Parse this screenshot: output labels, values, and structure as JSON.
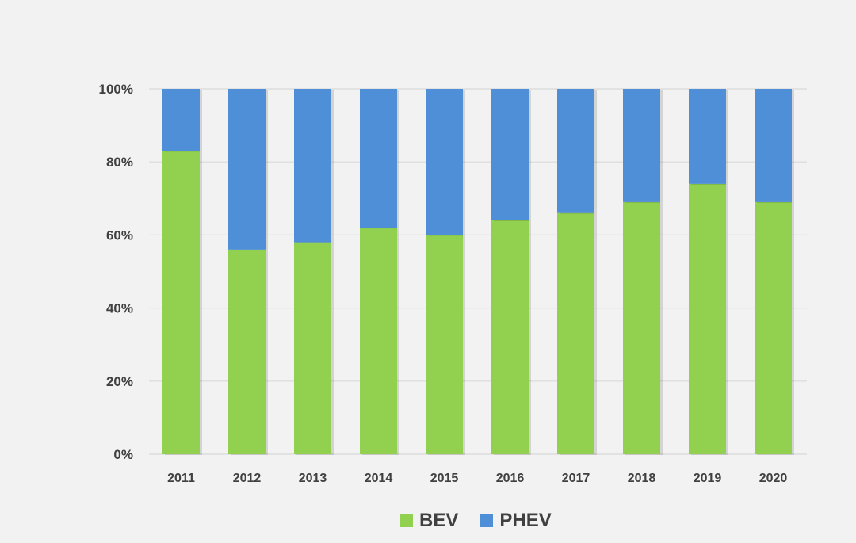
{
  "colors": {
    "bev": "#92d050",
    "phev": "#4f8fd8",
    "grid": "#d9d9d9",
    "axis_text": "#404040",
    "background": "#f2f2f2"
  },
  "legend": {
    "position": "bottom",
    "items": [
      {
        "label": "BEV",
        "color": "#92d050"
      },
      {
        "label": "PHEV",
        "color": "#4f8fd8"
      }
    ]
  },
  "chart_data": {
    "type": "bar",
    "stacked": true,
    "categories": [
      "2011",
      "2012",
      "2013",
      "2014",
      "2015",
      "2016",
      "2017",
      "2018",
      "2019",
      "2020"
    ],
    "series": [
      {
        "name": "BEV",
        "values": [
          83,
          56,
          58,
          62,
          60,
          64,
          66,
          69,
          74,
          69
        ]
      },
      {
        "name": "PHEV",
        "values": [
          17,
          44,
          42,
          38,
          40,
          36,
          34,
          31,
          26,
          31
        ]
      }
    ],
    "ylim": [
      0,
      100
    ],
    "yticks": [
      "0%",
      "20%",
      "40%",
      "60%",
      "80%",
      "100%"
    ],
    "grid": true,
    "title": "",
    "xlabel": "",
    "ylabel": ""
  }
}
